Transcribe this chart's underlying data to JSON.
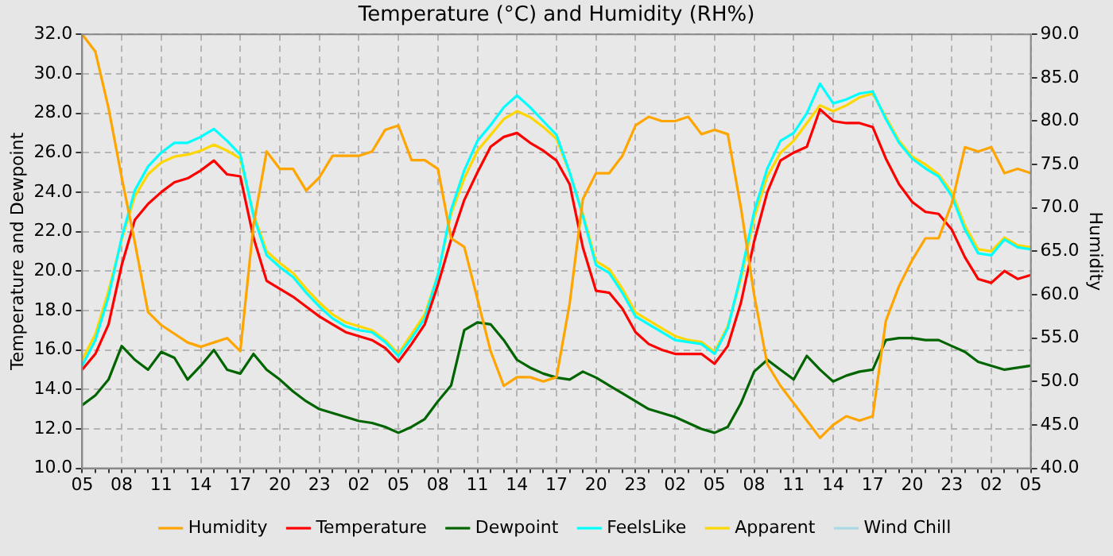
{
  "chart_data": {
    "type": "line",
    "title": "Temperature (°C) and Humidity (RH%)",
    "ylabel": "Temperature and Dewpoint",
    "y2label": "Humidity",
    "categories": [
      "05",
      null,
      null,
      "08",
      null,
      null,
      "11",
      null,
      null,
      "14",
      null,
      null,
      "17",
      null,
      null,
      "20",
      null,
      null,
      "23",
      null,
      null,
      "02",
      null,
      null,
      "05",
      null,
      null,
      "08",
      null,
      null,
      "11",
      null,
      null,
      "14",
      null,
      null,
      "17",
      null,
      null,
      "20",
      null,
      null,
      "23",
      null,
      null,
      "02",
      null,
      null,
      "05",
      null,
      null,
      "08",
      null,
      null,
      "11",
      null,
      null,
      "14",
      null,
      null,
      "17",
      null,
      null,
      "20",
      null,
      null,
      "23",
      null,
      null,
      "02",
      null,
      null,
      "05"
    ],
    "ylim": [
      10,
      32
    ],
    "yticks": [
      {
        "value": 10,
        "label": "10.0"
      },
      {
        "value": 12,
        "label": "12.0"
      },
      {
        "value": 14,
        "label": "14.0"
      },
      {
        "value": 16,
        "label": "16.0"
      },
      {
        "value": 18,
        "label": "18.0"
      },
      {
        "value": 20,
        "label": "20.0"
      },
      {
        "value": 22,
        "label": "22.0"
      },
      {
        "value": 24,
        "label": "24.0"
      },
      {
        "value": 26,
        "label": "26.0"
      },
      {
        "value": 28,
        "label": "28.0"
      },
      {
        "value": 30,
        "label": "30.0"
      },
      {
        "value": 32,
        "label": "32.0"
      }
    ],
    "y2lim": [
      40,
      90
    ],
    "y2ticks": [
      {
        "value": 40,
        "label": "40.0"
      },
      {
        "value": 45,
        "label": "45.0"
      },
      {
        "value": 50,
        "label": "50.0"
      },
      {
        "value": 55,
        "label": "55.0"
      },
      {
        "value": 60,
        "label": "60.0"
      },
      {
        "value": 65,
        "label": "65.0"
      },
      {
        "value": 70,
        "label": "70.0"
      },
      {
        "value": 75,
        "label": "75.0"
      },
      {
        "value": 80,
        "label": "80.0"
      },
      {
        "value": 85,
        "label": "85.0"
      },
      {
        "value": 90,
        "label": "90.0"
      }
    ],
    "grid": true,
    "legend": "bottom",
    "marker": "none",
    "line_style": "solid",
    "series": [
      {
        "name": "Humidity",
        "color": "#ffa500",
        "axis": "y2",
        "values": [
          90,
          88,
          81.5,
          73.5,
          66,
          58,
          56.5,
          55.5,
          54.5,
          54,
          54.5,
          55,
          53.5,
          68,
          76.5,
          74.5,
          74.5,
          72,
          73.5,
          76,
          76,
          76,
          76.5,
          79,
          79.5,
          75.5,
          75.5,
          74.5,
          66.5,
          65.5,
          59.5,
          53.5,
          49.5,
          50.5,
          50.5,
          50,
          50.5,
          59,
          71,
          74,
          74,
          76,
          79.5,
          80.5,
          80,
          80,
          80.5,
          78.5,
          79,
          78.5,
          70,
          60,
          52,
          49.5,
          47.5,
          45.5,
          43.5,
          45,
          46,
          45.5,
          46,
          57,
          61,
          64,
          66.5,
          66.5,
          70.5,
          77,
          76.5,
          77,
          74,
          74.5,
          74
        ]
      },
      {
        "name": "Temperature",
        "color": "#ff0000",
        "values": [
          15,
          15.8,
          17.3,
          20.3,
          22.6,
          23.4,
          24,
          24.5,
          24.7,
          25.1,
          25.6,
          24.9,
          24.8,
          21.7,
          19.5,
          19.1,
          18.7,
          18.2,
          17.7,
          17.3,
          16.9,
          16.7,
          16.5,
          16.1,
          15.4,
          16.3,
          17.3,
          19.3,
          21.6,
          23.6,
          25,
          26.3,
          26.8,
          27,
          26.5,
          26.1,
          25.6,
          24.4,
          21.2,
          19,
          18.9,
          18.1,
          16.9,
          16.3,
          16,
          15.8,
          15.8,
          15.8,
          15.3,
          16.2,
          18.4,
          21.5,
          24,
          25.6,
          26,
          26.3,
          28.2,
          27.6,
          27.5,
          27.5,
          27.3,
          25.7,
          24.4,
          23.5,
          23,
          22.9,
          22.1,
          20.7,
          19.6,
          19.4,
          20,
          19.6,
          19.8
        ]
      },
      {
        "name": "Dewpoint",
        "color": "#006400",
        "values": [
          13.2,
          13.7,
          14.5,
          16.2,
          15.5,
          15,
          15.9,
          15.6,
          14.5,
          15.2,
          16,
          15,
          14.8,
          15.8,
          15,
          14.5,
          13.9,
          13.4,
          13,
          12.8,
          12.6,
          12.4,
          12.3,
          12.1,
          11.8,
          12.1,
          12.5,
          13.4,
          14.2,
          17,
          17.4,
          17.3,
          16.5,
          15.5,
          15.1,
          14.8,
          14.6,
          14.5,
          14.9,
          14.6,
          14.2,
          13.8,
          13.4,
          13,
          12.8,
          12.6,
          12.3,
          12,
          11.8,
          12.1,
          13.3,
          14.9,
          15.5,
          15,
          14.5,
          15.7,
          15,
          14.4,
          14.7,
          14.9,
          15,
          16.5,
          16.6,
          16.6,
          16.5,
          16.5,
          16.2,
          15.9,
          15.4,
          15.2,
          15,
          15.1,
          15.2
        ]
      },
      {
        "name": "FeelsLike",
        "color": "#00ffff",
        "values": [
          15.2,
          16.5,
          18.7,
          21.7,
          24.1,
          25.3,
          26,
          26.5,
          26.5,
          26.8,
          27.2,
          26.6,
          25.9,
          22.8,
          20.8,
          20.2,
          19.7,
          18.9,
          18.2,
          17.6,
          17.2,
          17,
          16.9,
          16.4,
          15.7,
          16.6,
          17.6,
          19.8,
          23.1,
          25.1,
          26.6,
          27.4,
          28.3,
          28.9,
          28.3,
          27.6,
          26.9,
          25,
          22.8,
          20.3,
          19.9,
          18.9,
          17.7,
          17.3,
          16.9,
          16.5,
          16.4,
          16.3,
          15.8,
          17.1,
          19.8,
          23,
          25.2,
          26.6,
          27,
          28,
          29.5,
          28.5,
          28.7,
          29,
          29.1,
          27.7,
          26.5,
          25.7,
          25.2,
          24.8,
          23.8,
          22.1,
          20.9,
          20.8,
          21.6,
          21.2,
          21.1
        ]
      },
      {
        "name": "Apparent",
        "color": "#ffd700",
        "values": [
          15.5,
          16.8,
          19,
          21.6,
          23.8,
          24.9,
          25.5,
          25.8,
          25.9,
          26.1,
          26.4,
          26.1,
          25.7,
          22.9,
          21,
          20.4,
          19.9,
          19.1,
          18.4,
          17.8,
          17.4,
          17.2,
          17,
          16.5,
          15.8,
          16.8,
          17.8,
          19.8,
          22.9,
          24.7,
          26.1,
          26.9,
          27.7,
          28.1,
          27.8,
          27.3,
          26.7,
          25,
          22.9,
          20.5,
          20.1,
          19.1,
          17.9,
          17.5,
          17.1,
          16.7,
          16.5,
          16.4,
          15.9,
          17.2,
          19.6,
          22.7,
          24.8,
          26,
          26.6,
          27.5,
          28.4,
          28.1,
          28.4,
          28.8,
          29,
          27.8,
          26.6,
          25.8,
          25.4,
          24.9,
          24,
          22.3,
          21.1,
          21,
          21.7,
          21.3,
          21.2
        ]
      },
      {
        "name": "Wind Chill",
        "color": "#add8e6",
        "values": [
          null,
          null,
          null,
          null,
          null,
          null,
          null,
          null,
          null,
          null,
          null,
          null,
          null,
          null,
          null,
          null,
          null,
          null,
          null,
          null,
          null,
          null,
          null,
          null,
          null,
          null,
          null,
          null,
          null,
          null,
          null,
          null,
          null,
          null,
          null,
          null,
          null,
          null,
          null,
          null,
          null,
          null,
          null,
          null,
          null,
          null,
          null,
          null,
          null,
          null,
          null,
          null,
          null,
          null,
          null,
          null,
          null,
          null,
          null,
          null,
          null,
          null,
          null,
          null,
          null,
          null,
          null,
          null,
          null,
          null,
          null,
          null,
          null
        ]
      }
    ]
  }
}
